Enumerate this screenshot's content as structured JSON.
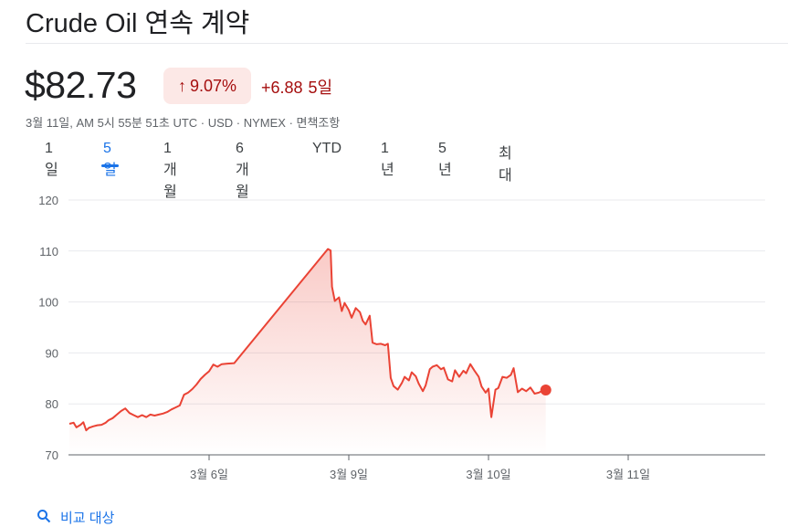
{
  "header": {
    "title": "Crude Oil 연속 계약"
  },
  "quote": {
    "price": "$82.73",
    "pct_change": "9.07%",
    "abs_change": "+6.88",
    "period": "5일",
    "meta": "3월 11일, AM 5시 55분 51초 UTC · USD · NYMEX · 면책조항"
  },
  "tabs": [
    {
      "label": "1일"
    },
    {
      "label": "5일"
    },
    {
      "label": "1개월"
    },
    {
      "label": "6개월"
    },
    {
      "label": "YTD"
    },
    {
      "label": "1년"
    },
    {
      "label": "5년"
    },
    {
      "label": "최대"
    }
  ],
  "active_tab": "5일",
  "compare": {
    "label": "비교 대상"
  },
  "colors": {
    "line": "#ea4335",
    "negative_text": "#a50e0e",
    "badge_bg": "#fce8e6",
    "accent": "#1a73e8"
  },
  "chart_data": {
    "type": "area",
    "ylim": [
      70,
      120
    ],
    "yticks": [
      70,
      80,
      90,
      100,
      110,
      120
    ],
    "xlim": [
      0,
      5
    ],
    "xticks": [
      {
        "x": 1,
        "label": "3월 6일"
      },
      {
        "x": 2,
        "label": "3월 9일"
      },
      {
        "x": 3,
        "label": "3월 10일"
      },
      {
        "x": 4,
        "label": "3월 11일"
      }
    ],
    "grid": true,
    "series": [
      {
        "points": [
          [
            0.0,
            76.1
          ],
          [
            0.03,
            76.3
          ],
          [
            0.05,
            75.4
          ],
          [
            0.08,
            75.9
          ],
          [
            0.1,
            76.4
          ],
          [
            0.12,
            74.8
          ],
          [
            0.14,
            75.3
          ],
          [
            0.17,
            75.6
          ],
          [
            0.2,
            75.8
          ],
          [
            0.23,
            75.9
          ],
          [
            0.26,
            76.3
          ],
          [
            0.28,
            76.8
          ],
          [
            0.31,
            77.2
          ],
          [
            0.34,
            77.9
          ],
          [
            0.37,
            78.6
          ],
          [
            0.4,
            79.1
          ],
          [
            0.43,
            78.2
          ],
          [
            0.46,
            77.8
          ],
          [
            0.49,
            77.4
          ],
          [
            0.52,
            77.8
          ],
          [
            0.55,
            77.4
          ],
          [
            0.58,
            77.9
          ],
          [
            0.61,
            77.7
          ],
          [
            0.64,
            77.9
          ],
          [
            0.67,
            78.1
          ],
          [
            0.7,
            78.4
          ],
          [
            0.73,
            78.9
          ],
          [
            0.76,
            79.3
          ],
          [
            0.79,
            79.7
          ],
          [
            0.82,
            81.8
          ],
          [
            0.85,
            82.2
          ],
          [
            0.88,
            82.9
          ],
          [
            0.91,
            83.8
          ],
          [
            0.94,
            84.9
          ],
          [
            0.97,
            85.7
          ],
          [
            1.0,
            86.4
          ],
          [
            1.03,
            87.7
          ],
          [
            1.06,
            87.3
          ],
          [
            1.09,
            87.8
          ],
          [
            1.13,
            87.9
          ],
          [
            1.18,
            88.0
          ],
          [
            1.85,
            110.4
          ],
          [
            1.87,
            110.1
          ],
          [
            1.88,
            103.0
          ],
          [
            1.9,
            100.2
          ],
          [
            1.93,
            100.9
          ],
          [
            1.95,
            98.2
          ],
          [
            1.97,
            99.8
          ],
          [
            2.0,
            98.4
          ],
          [
            2.02,
            96.9
          ],
          [
            2.05,
            98.8
          ],
          [
            2.08,
            98.0
          ],
          [
            2.1,
            96.3
          ],
          [
            2.12,
            95.6
          ],
          [
            2.15,
            97.3
          ],
          [
            2.17,
            92.0
          ],
          [
            2.2,
            91.7
          ],
          [
            2.23,
            91.8
          ],
          [
            2.26,
            91.5
          ],
          [
            2.28,
            91.8
          ],
          [
            2.3,
            85.1
          ],
          [
            2.32,
            83.5
          ],
          [
            2.35,
            82.8
          ],
          [
            2.38,
            84.1
          ],
          [
            2.4,
            85.3
          ],
          [
            2.43,
            84.6
          ],
          [
            2.45,
            86.2
          ],
          [
            2.48,
            85.4
          ],
          [
            2.5,
            84.0
          ],
          [
            2.53,
            82.5
          ],
          [
            2.55,
            83.6
          ],
          [
            2.58,
            86.8
          ],
          [
            2.6,
            87.3
          ],
          [
            2.63,
            87.6
          ],
          [
            2.66,
            86.8
          ],
          [
            2.68,
            87.1
          ],
          [
            2.71,
            84.8
          ],
          [
            2.74,
            84.4
          ],
          [
            2.76,
            86.6
          ],
          [
            2.79,
            85.3
          ],
          [
            2.82,
            86.5
          ],
          [
            2.84,
            86.0
          ],
          [
            2.87,
            87.8
          ],
          [
            2.9,
            86.5
          ],
          [
            2.93,
            85.3
          ],
          [
            2.95,
            83.4
          ],
          [
            2.98,
            82.2
          ],
          [
            3.0,
            83.0
          ],
          [
            3.02,
            77.4
          ],
          [
            3.05,
            82.8
          ],
          [
            3.07,
            83.1
          ],
          [
            3.1,
            85.3
          ],
          [
            3.13,
            85.1
          ],
          [
            3.16,
            85.7
          ],
          [
            3.18,
            87.0
          ],
          [
            3.21,
            82.3
          ],
          [
            3.24,
            83.0
          ],
          [
            3.27,
            82.5
          ],
          [
            3.3,
            83.2
          ],
          [
            3.33,
            82.0
          ],
          [
            3.36,
            82.2
          ],
          [
            3.38,
            82.5
          ],
          [
            3.41,
            82.73
          ]
        ]
      }
    ]
  }
}
